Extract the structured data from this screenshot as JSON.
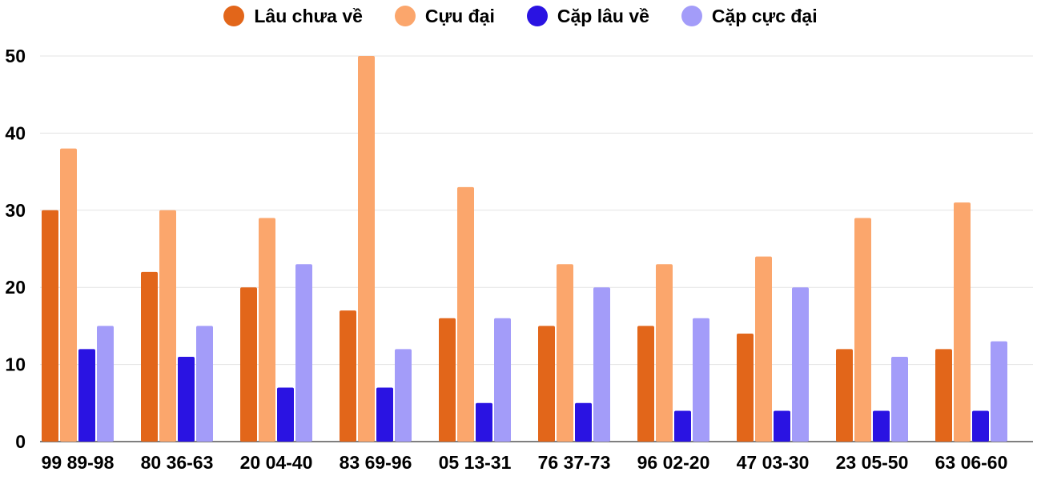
{
  "chart_data": {
    "type": "bar",
    "categories": [
      "99 89-98",
      "80 36-63",
      "20 04-40",
      "83 69-96",
      "05 13-31",
      "76 37-73",
      "96 02-20",
      "47 03-30",
      "23 05-50",
      "63 06-60"
    ],
    "series": [
      {
        "name": "Lâu chưa về",
        "color": "#e2661a",
        "values": [
          30,
          22,
          20,
          17,
          16,
          15,
          15,
          14,
          12,
          12
        ]
      },
      {
        "name": "Cựu đại",
        "color": "#fba66c",
        "values": [
          38,
          30,
          29,
          50,
          33,
          23,
          23,
          24,
          29,
          31
        ]
      },
      {
        "name": "Cặp lâu về",
        "color": "#2a13e2",
        "values": [
          12,
          11,
          7,
          7,
          5,
          5,
          4,
          4,
          4,
          4
        ]
      },
      {
        "name": "Cặp cực đại",
        "color": "#a39cf9",
        "values": [
          15,
          15,
          23,
          12,
          16,
          20,
          16,
          20,
          11,
          13
        ]
      }
    ],
    "ylim": [
      0,
      50
    ],
    "yticks": [
      0,
      10,
      20,
      30,
      40,
      50
    ],
    "grid": true,
    "legend_position": "top-center",
    "title": "",
    "xlabel": "",
    "ylabel": ""
  }
}
